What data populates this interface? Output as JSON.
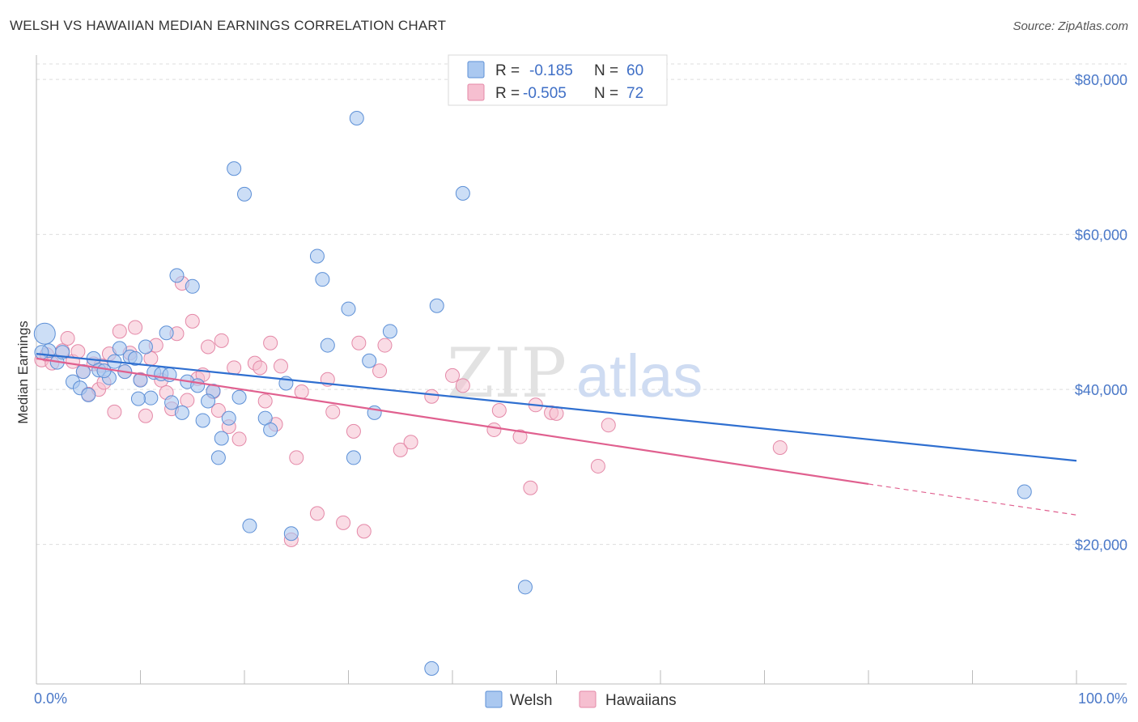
{
  "title": "WELSH VS HAWAIIAN MEDIAN EARNINGS CORRELATION CHART",
  "source": "Source: ZipAtlas.com",
  "colors": {
    "welsh_fill": "#aac8f0",
    "welsh_stroke": "#5c8fd6",
    "welsh_line": "#2f6fd0",
    "hawaiian_fill": "#f6bfd0",
    "hawaiian_stroke": "#e488a7",
    "hawaiian_line": "#e0608f",
    "grid": "#dddddd",
    "tick_text": "#4a78c8"
  },
  "legend": {
    "r_label": "R =",
    "n_label": "N =",
    "welsh": {
      "r": "-0.185",
      "n": "60"
    },
    "hawaiian": {
      "r": "-0.505",
      "n": "72"
    }
  },
  "watermark": {
    "part1": "ZIP",
    "part2": "atlas"
  },
  "chart_data": {
    "type": "scatter",
    "title": "WELSH VS HAWAIIAN MEDIAN EARNINGS CORRELATION CHART",
    "xlabel": "",
    "ylabel": "Median Earnings",
    "xlim": [
      0,
      100
    ],
    "ylim": [
      2000,
      82000
    ],
    "x_tick_labels": [
      "0.0%",
      "100.0%"
    ],
    "y_ticks": [
      20000,
      40000,
      60000,
      80000
    ],
    "y_tick_labels": [
      "$20,000",
      "$40,000",
      "$60,000",
      "$80,000"
    ],
    "grid": true,
    "legend_position": "top-center",
    "series": [
      {
        "name": "Welsh",
        "trend": {
          "x": [
            0,
            100
          ],
          "y": [
            44600,
            30800
          ]
        },
        "points": [
          [
            0.8,
            47200
          ],
          [
            1.2,
            45000
          ],
          [
            2.0,
            43500
          ],
          [
            3.5,
            41000
          ],
          [
            4.2,
            40200
          ],
          [
            4.5,
            42300
          ],
          [
            5.0,
            39300
          ],
          [
            5.5,
            44000
          ],
          [
            6.0,
            42500
          ],
          [
            7.0,
            41500
          ],
          [
            7.5,
            43600
          ],
          [
            8.0,
            45300
          ],
          [
            8.5,
            42300
          ],
          [
            9.0,
            44200
          ],
          [
            9.5,
            44000
          ],
          [
            10.0,
            41200
          ],
          [
            10.5,
            45500
          ],
          [
            11.0,
            38900
          ],
          [
            11.3,
            42200
          ],
          [
            12.0,
            42000
          ],
          [
            12.5,
            47300
          ],
          [
            13.0,
            38300
          ],
          [
            13.5,
            54700
          ],
          [
            14.0,
            37000
          ],
          [
            14.5,
            41000
          ],
          [
            15.0,
            53300
          ],
          [
            15.5,
            40500
          ],
          [
            16.0,
            36000
          ],
          [
            17.0,
            39800
          ],
          [
            17.5,
            31200
          ],
          [
            17.8,
            33700
          ],
          [
            18.5,
            36300
          ],
          [
            19.0,
            68500
          ],
          [
            19.5,
            39000
          ],
          [
            20.0,
            65200
          ],
          [
            20.5,
            22400
          ],
          [
            22.0,
            36300
          ],
          [
            22.5,
            34800
          ],
          [
            24.0,
            40800
          ],
          [
            24.5,
            21400
          ],
          [
            27.0,
            57200
          ],
          [
            27.5,
            54200
          ],
          [
            28.0,
            45700
          ],
          [
            30.0,
            50400
          ],
          [
            30.5,
            31200
          ],
          [
            30.8,
            75000
          ],
          [
            32.0,
            43700
          ],
          [
            32.5,
            37000
          ],
          [
            34.0,
            47500
          ],
          [
            38.0,
            4000
          ],
          [
            38.5,
            50800
          ],
          [
            41.0,
            65300
          ],
          [
            47.0,
            14500
          ],
          [
            95.0,
            26800
          ],
          [
            0.5,
            44800
          ],
          [
            2.5,
            44800
          ],
          [
            6.5,
            42400
          ],
          [
            9.8,
            38800
          ],
          [
            12.8,
            41900
          ],
          [
            16.5,
            38500
          ]
        ]
      },
      {
        "name": "Hawaiians",
        "trend": {
          "x": [
            0,
            80
          ],
          "y": [
            44000,
            27800
          ]
        },
        "trend_dashed": {
          "x": [
            80,
            100
          ],
          "y": [
            27800,
            23800
          ]
        },
        "points": [
          [
            0.5,
            43800
          ],
          [
            1.0,
            44500
          ],
          [
            1.5,
            43400
          ],
          [
            2.5,
            45000
          ],
          [
            3.0,
            46600
          ],
          [
            3.5,
            43600
          ],
          [
            4.0,
            44900
          ],
          [
            4.5,
            42300
          ],
          [
            5.0,
            39400
          ],
          [
            5.5,
            43300
          ],
          [
            6.0,
            40000
          ],
          [
            6.5,
            40900
          ],
          [
            7.0,
            44600
          ],
          [
            7.5,
            37100
          ],
          [
            8.0,
            47500
          ],
          [
            8.5,
            42300
          ],
          [
            9.0,
            44700
          ],
          [
            9.5,
            48000
          ],
          [
            10.0,
            41300
          ],
          [
            10.5,
            36600
          ],
          [
            11.0,
            44000
          ],
          [
            11.5,
            45700
          ],
          [
            12.0,
            41200
          ],
          [
            12.5,
            39600
          ],
          [
            13.0,
            37500
          ],
          [
            13.5,
            47200
          ],
          [
            14.0,
            53700
          ],
          [
            14.5,
            38600
          ],
          [
            15.0,
            48800
          ],
          [
            15.5,
            41400
          ],
          [
            16.0,
            41900
          ],
          [
            16.5,
            45500
          ],
          [
            17.0,
            39700
          ],
          [
            17.5,
            37300
          ],
          [
            17.8,
            46300
          ],
          [
            18.5,
            35200
          ],
          [
            19.0,
            42800
          ],
          [
            19.5,
            33600
          ],
          [
            21.0,
            43400
          ],
          [
            21.5,
            42800
          ],
          [
            22.0,
            38500
          ],
          [
            22.5,
            46000
          ],
          [
            23.0,
            35500
          ],
          [
            23.5,
            43000
          ],
          [
            24.5,
            20600
          ],
          [
            25.0,
            31200
          ],
          [
            25.5,
            39700
          ],
          [
            27.0,
            24000
          ],
          [
            28.0,
            41300
          ],
          [
            28.5,
            37100
          ],
          [
            29.5,
            22800
          ],
          [
            30.5,
            34600
          ],
          [
            31.0,
            46000
          ],
          [
            31.5,
            21700
          ],
          [
            33.0,
            42400
          ],
          [
            33.5,
            45700
          ],
          [
            35.0,
            32200
          ],
          [
            36.0,
            33200
          ],
          [
            38.0,
            39100
          ],
          [
            40.0,
            41800
          ],
          [
            41.0,
            40500
          ],
          [
            44.0,
            34800
          ],
          [
            44.5,
            37300
          ],
          [
            46.5,
            33900
          ],
          [
            47.5,
            27300
          ],
          [
            48.0,
            38000
          ],
          [
            49.5,
            37000
          ],
          [
            50.0,
            36900
          ],
          [
            54.0,
            30100
          ],
          [
            55.0,
            35400
          ],
          [
            71.5,
            32500
          ],
          [
            6.2,
            43100
          ]
        ]
      }
    ]
  },
  "bottom_legend": [
    {
      "label": "Welsh"
    },
    {
      "label": "Hawaiians"
    }
  ]
}
